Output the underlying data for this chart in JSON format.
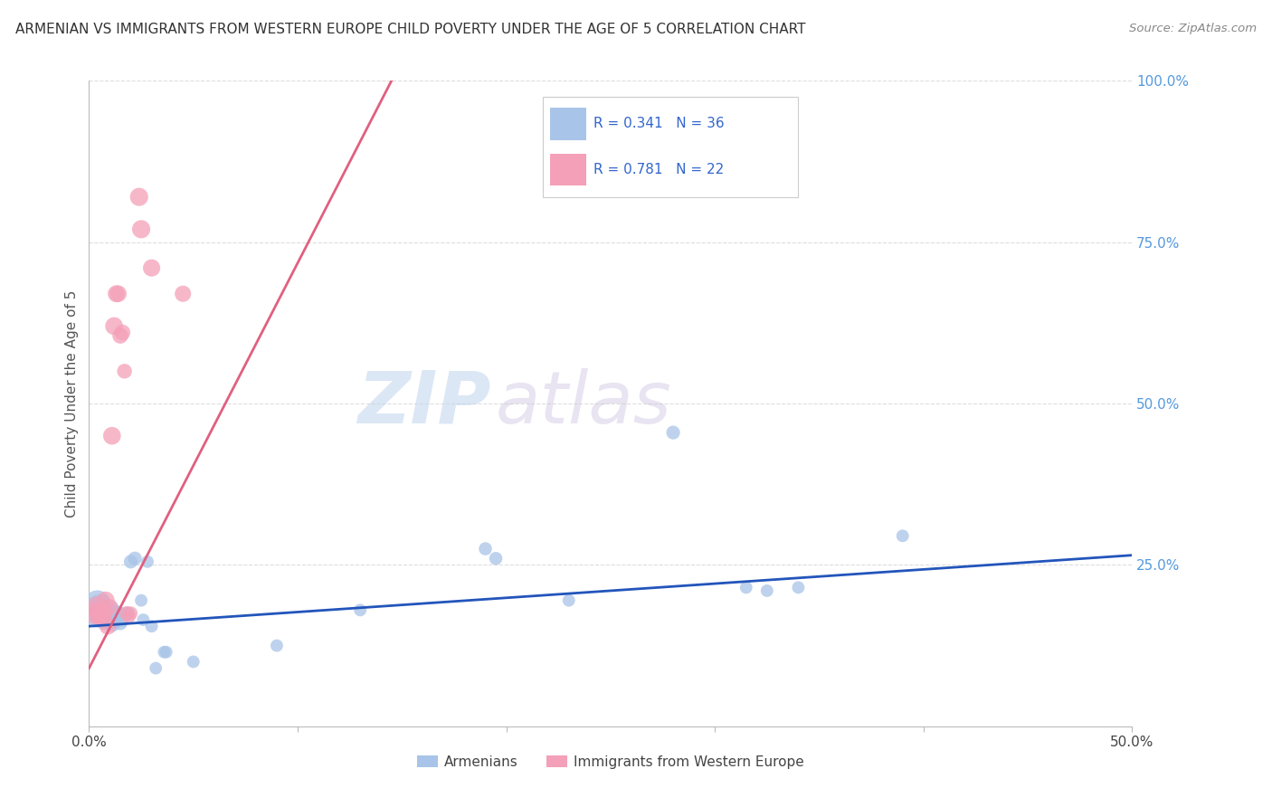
{
  "title": "ARMENIAN VS IMMIGRANTS FROM WESTERN EUROPE CHILD POVERTY UNDER THE AGE OF 5 CORRELATION CHART",
  "source": "Source: ZipAtlas.com",
  "ylabel": "Child Poverty Under the Age of 5",
  "legend_label_blue": "Armenians",
  "legend_label_pink": "Immigrants from Western Europe",
  "r_blue": "R = 0.341",
  "n_blue": "N = 36",
  "r_pink": "R = 0.781",
  "n_pink": "N = 22",
  "xlim": [
    0.0,
    0.5
  ],
  "ylim": [
    0.0,
    1.0
  ],
  "yticks": [
    0.0,
    0.25,
    0.5,
    0.75,
    1.0
  ],
  "ytick_labels": [
    "",
    "25.0%",
    "50.0%",
    "75.0%",
    "100.0%"
  ],
  "watermark_zip": "ZIP",
  "watermark_atlas": "atlas",
  "blue_color": "#a8c4e8",
  "pink_color": "#f4a0b8",
  "blue_line_color": "#2255bb",
  "pink_line_color": "#e06080",
  "blue_scatter": [
    [
      0.003,
      0.175
    ],
    [
      0.004,
      0.19
    ],
    [
      0.005,
      0.185
    ],
    [
      0.006,
      0.17
    ],
    [
      0.007,
      0.175
    ],
    [
      0.008,
      0.165
    ],
    [
      0.009,
      0.175
    ],
    [
      0.01,
      0.18
    ],
    [
      0.011,
      0.16
    ],
    [
      0.012,
      0.165
    ],
    [
      0.013,
      0.175
    ],
    [
      0.014,
      0.175
    ],
    [
      0.015,
      0.16
    ],
    [
      0.016,
      0.165
    ],
    [
      0.018,
      0.175
    ],
    [
      0.019,
      0.175
    ],
    [
      0.02,
      0.255
    ],
    [
      0.022,
      0.26
    ],
    [
      0.025,
      0.195
    ],
    [
      0.026,
      0.165
    ],
    [
      0.028,
      0.255
    ],
    [
      0.03,
      0.155
    ],
    [
      0.032,
      0.09
    ],
    [
      0.036,
      0.115
    ],
    [
      0.037,
      0.115
    ],
    [
      0.05,
      0.1
    ],
    [
      0.09,
      0.125
    ],
    [
      0.13,
      0.18
    ],
    [
      0.19,
      0.275
    ],
    [
      0.195,
      0.26
    ],
    [
      0.23,
      0.195
    ],
    [
      0.28,
      0.455
    ],
    [
      0.315,
      0.215
    ],
    [
      0.325,
      0.21
    ],
    [
      0.34,
      0.215
    ],
    [
      0.39,
      0.295
    ]
  ],
  "pink_scatter": [
    [
      0.003,
      0.175
    ],
    [
      0.004,
      0.185
    ],
    [
      0.005,
      0.175
    ],
    [
      0.006,
      0.17
    ],
    [
      0.007,
      0.175
    ],
    [
      0.008,
      0.195
    ],
    [
      0.009,
      0.155
    ],
    [
      0.01,
      0.185
    ],
    [
      0.011,
      0.45
    ],
    [
      0.012,
      0.62
    ],
    [
      0.013,
      0.67
    ],
    [
      0.014,
      0.67
    ],
    [
      0.015,
      0.605
    ],
    [
      0.016,
      0.61
    ],
    [
      0.017,
      0.55
    ],
    [
      0.018,
      0.175
    ],
    [
      0.019,
      0.17
    ],
    [
      0.02,
      0.175
    ],
    [
      0.024,
      0.82
    ],
    [
      0.025,
      0.77
    ],
    [
      0.03,
      0.71
    ],
    [
      0.045,
      0.67
    ]
  ],
  "blue_sizes": [
    500,
    450,
    400,
    350,
    300,
    280,
    260,
    240,
    200,
    180,
    160,
    140,
    130,
    120,
    110,
    110,
    120,
    120,
    100,
    100,
    100,
    100,
    100,
    100,
    100,
    100,
    100,
    100,
    110,
    110,
    100,
    120,
    100,
    100,
    100,
    100
  ],
  "pink_sizes": [
    300,
    280,
    260,
    240,
    220,
    200,
    180,
    160,
    200,
    200,
    180,
    180,
    160,
    160,
    140,
    130,
    120,
    120,
    210,
    210,
    190,
    170
  ],
  "blue_line_x": [
    0.0,
    0.5
  ],
  "blue_line_y": [
    0.155,
    0.265
  ],
  "pink_line_x": [
    0.0,
    0.145
  ],
  "pink_line_y": [
    0.09,
    1.0
  ]
}
